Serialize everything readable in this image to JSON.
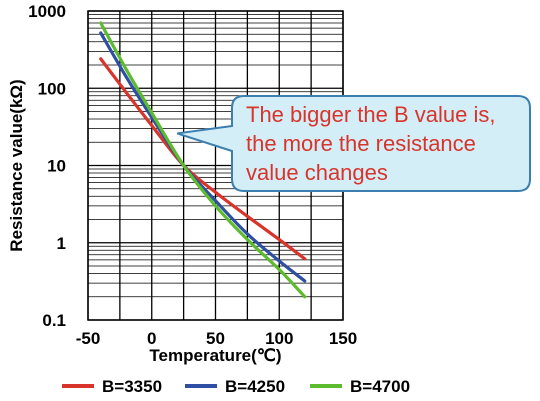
{
  "chart_data": {
    "type": "line",
    "title": "",
    "xlabel": "Temperature(℃)",
    "ylabel": "Resistance value(kΩ)",
    "xlim": [
      -50,
      150
    ],
    "ylim": [
      0.1,
      1000
    ],
    "yscale": "log",
    "x_ticks": [
      "-50",
      "0",
      "50",
      "100",
      "150"
    ],
    "y_ticks": [
      "0.1",
      "1",
      "10",
      "100",
      "1000"
    ],
    "grid": true,
    "legend_position": "bottom",
    "series": [
      {
        "name": "B=3350",
        "color": "#d9342b",
        "x": [
          -40,
          -20,
          0,
          25,
          50,
          75,
          100,
          120
        ],
        "y": [
          240,
          88,
          33,
          10,
          4.5,
          2.2,
          1.1,
          0.62
        ]
      },
      {
        "name": "B=4250",
        "color": "#2e4fa3",
        "x": [
          -40,
          -20,
          0,
          25,
          50,
          75,
          100,
          120
        ],
        "y": [
          520,
          140,
          42,
          10,
          3.5,
          1.3,
          0.58,
          0.32
        ]
      },
      {
        "name": "B=4700",
        "color": "#5dbb2e",
        "x": [
          -40,
          -20,
          0,
          25,
          50,
          75,
          100,
          120
        ],
        "y": [
          700,
          175,
          48,
          10,
          3.0,
          1.1,
          0.45,
          0.2
        ]
      }
    ],
    "annotation": {
      "lines": [
        "The bigger the B value is,",
        "the more the resistance",
        "value changes"
      ],
      "text_color": "#d9342b",
      "fill_color": "#d3eef7",
      "border_color": "#3a7fb0",
      "pointer_x": 20,
      "pointer_y": 26
    }
  }
}
